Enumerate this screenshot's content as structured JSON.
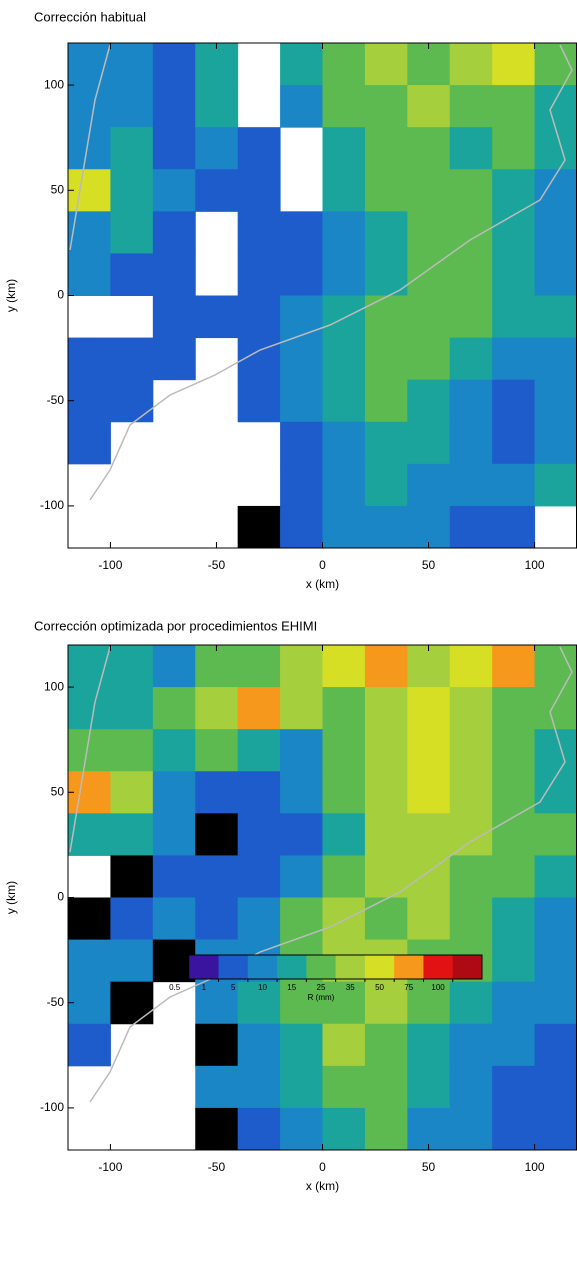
{
  "chart_data": [
    {
      "type": "heatmap",
      "title": "Corrección habitual",
      "xlabel": "x (km)",
      "ylabel": "y (km)",
      "xlim": [
        -120,
        120
      ],
      "ylim": [
        -120,
        120
      ],
      "xticks": [
        -100,
        -50,
        0,
        50,
        100
      ],
      "yticks": [
        -100,
        -50,
        0,
        50,
        100
      ],
      "z": [
        [
          5,
          8,
          3,
          12,
          null,
          10,
          20,
          25,
          20,
          30,
          40,
          20
        ],
        [
          6,
          8,
          3,
          10,
          null,
          8,
          15,
          20,
          25,
          20,
          15,
          12
        ],
        [
          7,
          10,
          4,
          8,
          3,
          null,
          10,
          20,
          15,
          12,
          20,
          10
        ],
        [
          40,
          12,
          6,
          3,
          2,
          null,
          10,
          15,
          20,
          15,
          12,
          8
        ],
        [
          8,
          10,
          3,
          null,
          2,
          1,
          8,
          12,
          15,
          20,
          10,
          8
        ],
        [
          8,
          4,
          2,
          null,
          3,
          4,
          7,
          10,
          15,
          18,
          12,
          8
        ],
        [
          null,
          null,
          2,
          3,
          4,
          6,
          10,
          15,
          20,
          15,
          12,
          10
        ],
        [
          2,
          2,
          3,
          null,
          4,
          6,
          12,
          18,
          15,
          12,
          8,
          6
        ],
        [
          3,
          2,
          null,
          null,
          3,
          5,
          10,
          15,
          12,
          8,
          4,
          6
        ],
        [
          2,
          null,
          null,
          null,
          null,
          4,
          8,
          12,
          10,
          8,
          3,
          6
        ],
        [
          null,
          null,
          null,
          null,
          null,
          3,
          6,
          10,
          8,
          6,
          8,
          10
        ],
        [
          null,
          null,
          null,
          null,
          0.3,
          2,
          5,
          8,
          6,
          4,
          3,
          null
        ]
      ]
    },
    {
      "type": "heatmap",
      "title": "Corrección optimizada por procedimientos EHIMI",
      "xlabel": "x (km)",
      "ylabel": "y (km)",
      "xlim": [
        -120,
        120
      ],
      "ylim": [
        -120,
        120
      ],
      "xticks": [
        -100,
        -50,
        0,
        50,
        100
      ],
      "yticks": [
        -100,
        -50,
        0,
        50,
        100
      ],
      "z": [
        [
          10,
          12,
          8,
          15,
          20,
          25,
          35,
          50,
          30,
          40,
          60,
          20
        ],
        [
          12,
          10,
          15,
          25,
          50,
          30,
          20,
          25,
          35,
          30,
          20,
          15
        ],
        [
          15,
          20,
          12,
          18,
          10,
          8,
          15,
          30,
          40,
          25,
          15,
          12
        ],
        [
          60,
          25,
          8,
          4,
          3,
          5,
          15,
          25,
          35,
          30,
          20,
          12
        ],
        [
          12,
          10,
          6,
          0.3,
          2,
          4,
          12,
          25,
          30,
          25,
          20,
          15
        ],
        [
          null,
          0.3,
          4,
          3,
          4,
          8,
          20,
          30,
          25,
          20,
          15,
          10
        ],
        [
          0.3,
          4,
          6,
          3,
          5,
          15,
          25,
          20,
          30,
          20,
          12,
          8
        ],
        [
          5,
          6,
          0.3,
          5,
          8,
          20,
          25,
          30,
          20,
          15,
          10,
          6
        ],
        [
          6,
          0.3,
          null,
          8,
          10,
          15,
          20,
          25,
          15,
          10,
          8,
          5
        ],
        [
          4,
          null,
          null,
          0.3,
          8,
          12,
          25,
          20,
          12,
          8,
          6,
          4
        ],
        [
          null,
          null,
          null,
          6,
          5,
          10,
          15,
          20,
          10,
          6,
          4,
          3
        ],
        [
          null,
          null,
          null,
          0.3,
          4,
          8,
          12,
          15,
          8,
          5,
          3,
          2
        ]
      ]
    }
  ],
  "colorbar": {
    "label": "R (mm)",
    "bounds": [
      0.5,
      1,
      5,
      10,
      15,
      25,
      35,
      50,
      75,
      100
    ],
    "colors": [
      "#000000",
      "#3a139e",
      "#1e5ccc",
      "#1b86c6",
      "#1aa49c",
      "#5cba50",
      "#a6cf3e",
      "#d6df24",
      "#f6981c",
      "#e01212",
      "#ae0a14"
    ]
  }
}
